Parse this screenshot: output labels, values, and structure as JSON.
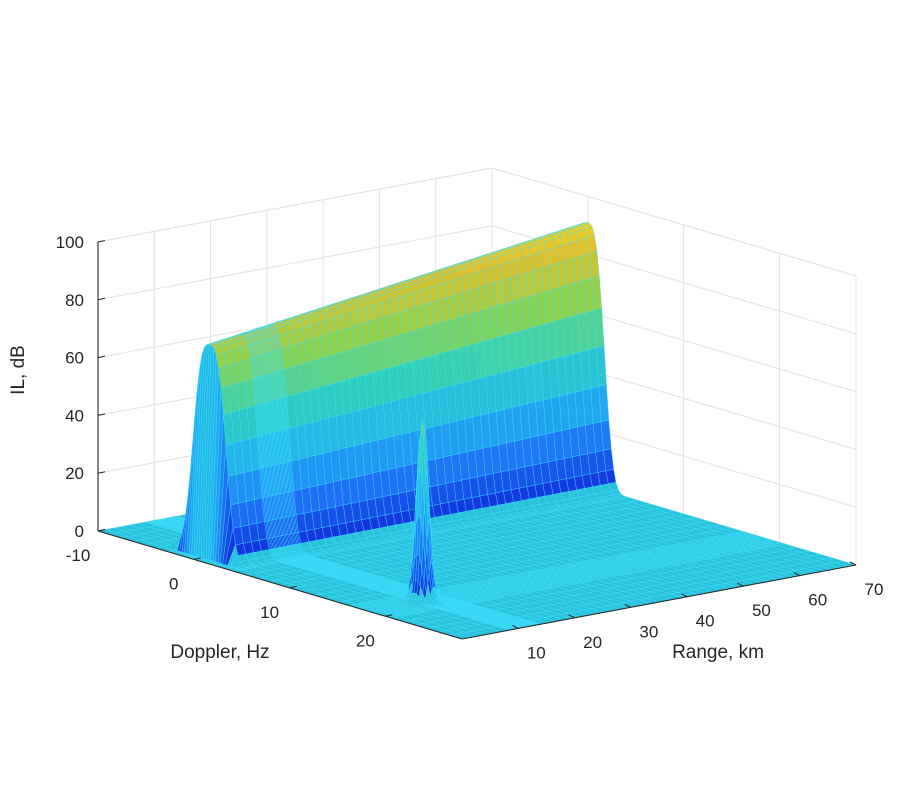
{
  "chart_data": {
    "type": "surface",
    "title": "",
    "xlabel": "Range, km",
    "ylabel": "Doppler, Hz",
    "zlabel": "IL, dB",
    "x_ticks": [
      10,
      20,
      30,
      40,
      50,
      60,
      70
    ],
    "y_ticks": [
      -10,
      0,
      10,
      20
    ],
    "z_ticks": [
      0,
      20,
      40,
      60,
      80,
      100
    ],
    "xlim": [
      0,
      70
    ],
    "ylim": [
      -10,
      28
    ],
    "zlim": [
      0,
      100
    ],
    "grid": true,
    "colormap": [
      "#0d1fd6",
      "#1f6ef5",
      "#23b3f0",
      "#2fd0bd",
      "#8cd34f",
      "#e3c02a",
      "#f7e51c"
    ],
    "mesh_color": "#3ae0ff",
    "floor_color": "#2bc2dc",
    "ridge": {
      "doppler_center": 0,
      "doppler_halfwidth": 1.6,
      "range_start": 2,
      "range_end": 70,
      "peak_start": 73,
      "peak_end": 91
    },
    "spike": {
      "range": 10,
      "doppler": 18,
      "peak": 63,
      "halfwidth_range": 0.55,
      "halfwidth_doppler": 0.55
    }
  }
}
